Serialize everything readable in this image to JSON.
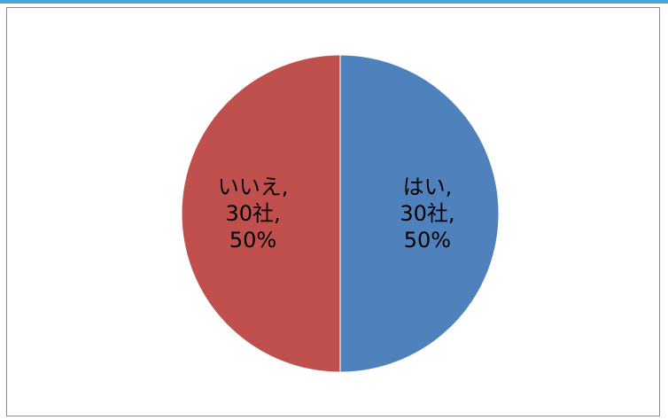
{
  "chart_data": {
    "type": "pie",
    "title": "",
    "slices": [
      {
        "category": "はい",
        "count_label": "30社",
        "percent_label": "50%",
        "value": 30,
        "color": "#4f81bd"
      },
      {
        "category": "いいえ",
        "count_label": "30社",
        "percent_label": "50%",
        "value": 30,
        "color": "#c0504d"
      }
    ]
  },
  "frame": {
    "accent_color": "#4aa3df",
    "border_color": "#8c8c8c"
  }
}
